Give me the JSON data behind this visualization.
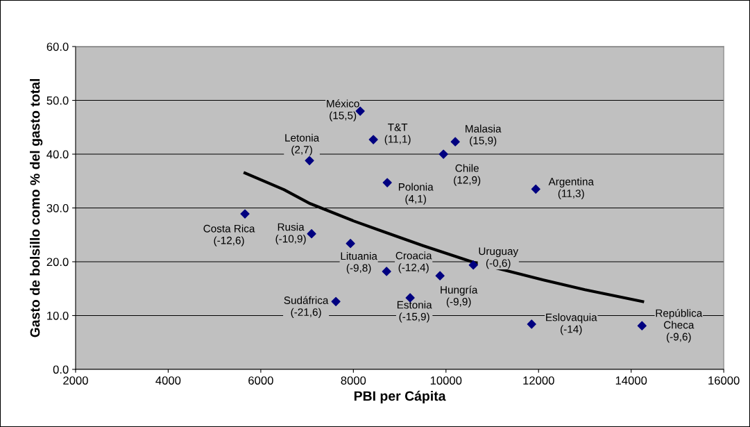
{
  "chart_data": {
    "type": "scatter",
    "xlabel": "PBI per Cápita",
    "ylabel": "Gasto de bolsillo como % del gasto total",
    "xlim": [
      2000,
      16000
    ],
    "xticks": [
      2000,
      4000,
      6000,
      8000,
      10000,
      12000,
      14000,
      16000
    ],
    "ylim": [
      0,
      60
    ],
    "yticks": [
      {
        "value": 0,
        "label": "0.0"
      },
      {
        "value": 10,
        "label": "10.0"
      },
      {
        "value": 20,
        "label": "20.0"
      },
      {
        "value": 30,
        "label": "30.0"
      },
      {
        "value": 40,
        "label": "40.0"
      },
      {
        "value": 50,
        "label": "50.0"
      },
      {
        "value": 60,
        "label": "60.0"
      }
    ],
    "grid": "y",
    "marker": "diamond",
    "annotations": [
      {
        "text": "México\n(15,5)",
        "x": 8147,
        "y": 48.0
      },
      {
        "text": "T&T\n(11,1)",
        "x": 8432,
        "y": 42.7
      },
      {
        "text": "Letonia\n(2,7)",
        "x": 7052,
        "y": 38.8
      },
      {
        "text": "Malasia\n(15,9)",
        "x": 10201,
        "y": 42.3
      },
      {
        "text": "Chile\n(12,9)",
        "x": 9946,
        "y": 40.0
      },
      {
        "text": "Polonia\n(4,1)",
        "x": 8732,
        "y": 34.7
      },
      {
        "text": "Argentina\n(11,3)",
        "x": 11940,
        "y": 33.5
      },
      {
        "text": "Costa Rica\n(-12,6)",
        "x": 5658,
        "y": 28.9
      },
      {
        "text": "Rusia\n(-10,9)",
        "x": 7097,
        "y": 25.2
      },
      {
        "text": "Lituania\n(-9,8)",
        "x": 7937,
        "y": 23.4
      },
      {
        "text": "Croacia\n(-12,4)",
        "x": 8717,
        "y": 18.2
      },
      {
        "text": "Uruguay\n(-0,6)",
        "x": 10591,
        "y": 19.4
      },
      {
        "text": "Hungría\n(-9,9)",
        "x": 9871,
        "y": 17.4
      },
      {
        "text": "Estonia\n(-15,9)",
        "x": 9226,
        "y": 13.3
      },
      {
        "text": "Sudáfrica\n(-21,6)",
        "x": 7622,
        "y": 12.6
      },
      {
        "text": "Eslovaquia\n(-14)",
        "x": 11850,
        "y": 8.4
      },
      {
        "text": "República\nCheca\n(-9,6)",
        "x": 14234,
        "y": 8.1
      }
    ],
    "series": [
      {
        "color": "#000080",
        "x": [
          8147,
          8432,
          7052,
          10201,
          9946,
          8732,
          11940,
          5658,
          7097,
          7937,
          8717,
          10591,
          9871,
          9226,
          7622,
          11850,
          14234
        ],
        "values": [
          48.0,
          42.7,
          38.8,
          42.3,
          40.0,
          34.7,
          33.5,
          28.9,
          25.2,
          23.4,
          18.2,
          19.4,
          17.4,
          13.3,
          12.6,
          8.4,
          8.1
        ]
      },
      {
        "type": "line",
        "color": "#000000",
        "line_style": "solid",
        "marker": "none",
        "x": [
          5658,
          6500,
          7067,
          8000,
          8612,
          9500,
          10591,
          12105,
          13000,
          14249
        ],
        "values": [
          36.5,
          33.4,
          30.8,
          27.6,
          25.7,
          23.0,
          19.9,
          16.6,
          14.8,
          12.6
        ]
      }
    ]
  }
}
